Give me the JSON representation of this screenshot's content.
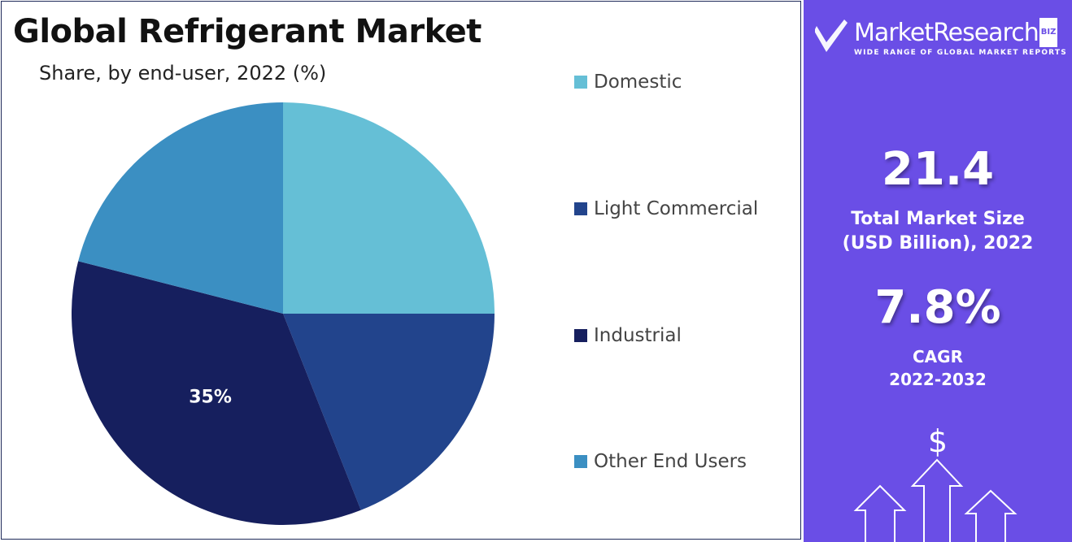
{
  "title": "Global Refrigerant Market",
  "subtitle": "Share, by end-user, 2022 (%)",
  "chart_data": {
    "type": "pie",
    "categories": [
      "Domestic",
      "Light Commercial",
      "Industrial",
      "Other End Users"
    ],
    "values": [
      25,
      19,
      35,
      21
    ],
    "colors": [
      "#65bfd6",
      "#22448c",
      "#161f5e",
      "#3b8fc2"
    ],
    "data_labels": [
      "",
      "",
      "35%",
      ""
    ],
    "legend": "right",
    "start": "top, clockwise"
  },
  "panel": {
    "brand_name": "MarketResearch",
    "brand_suffix": "BIZ",
    "brand_tagline": "WIDE RANGE OF GLOBAL MARKET REPORTS",
    "market_size_value": "21.4",
    "market_size_label_1": "Total Market Size",
    "market_size_label_2": "(USD Billion), 2022",
    "cagr_value": "7.8%",
    "cagr_label_1": "CAGR",
    "cagr_label_2": "2022-2032",
    "dollar_symbol": "$",
    "background": "#6a4ee6"
  }
}
